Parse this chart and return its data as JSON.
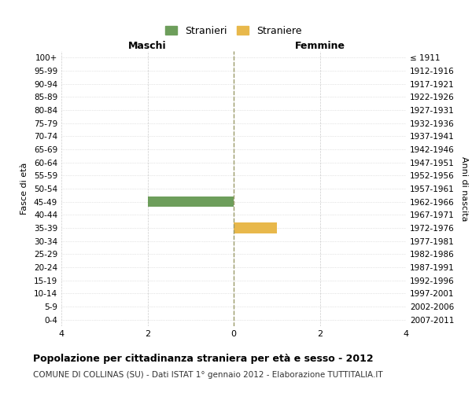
{
  "age_groups": [
    "0-4",
    "5-9",
    "10-14",
    "15-19",
    "20-24",
    "25-29",
    "30-34",
    "35-39",
    "40-44",
    "45-49",
    "50-54",
    "55-59",
    "60-64",
    "65-69",
    "70-74",
    "75-79",
    "80-84",
    "85-89",
    "90-94",
    "95-99",
    "100+"
  ],
  "birth_years": [
    "2007-2011",
    "2002-2006",
    "1997-2001",
    "1992-1996",
    "1987-1991",
    "1982-1986",
    "1977-1981",
    "1972-1976",
    "1967-1971",
    "1962-1966",
    "1957-1961",
    "1952-1956",
    "1947-1951",
    "1942-1946",
    "1937-1941",
    "1932-1936",
    "1927-1931",
    "1922-1926",
    "1917-1921",
    "1912-1916",
    "≤ 1911"
  ],
  "males": [
    0,
    0,
    0,
    0,
    0,
    0,
    0,
    0,
    0,
    2,
    0,
    0,
    0,
    0,
    0,
    0,
    0,
    0,
    0,
    0,
    0
  ],
  "females": [
    0,
    0,
    0,
    0,
    0,
    0,
    0,
    1,
    0,
    0,
    0,
    0,
    0,
    0,
    0,
    0,
    0,
    0,
    0,
    0,
    0
  ],
  "male_color": "#6d9e5b",
  "female_color": "#e8b84b",
  "male_label": "Stranieri",
  "female_label": "Straniere",
  "xlim": 4,
  "title": "Popolazione per cittadinanza straniera per età e sesso - 2012",
  "subtitle": "COMUNE DI COLLINAS (SU) - Dati ISTAT 1° gennaio 2012 - Elaborazione TUTTITALIA.IT",
  "left_header": "Maschi",
  "right_header": "Femmine",
  "left_yaxis_label": "Fasce di età",
  "right_yaxis_label": "Anni di nascita",
  "bg_color": "#ffffff",
  "grid_color": "#cccccc",
  "bar_height": 0.8
}
